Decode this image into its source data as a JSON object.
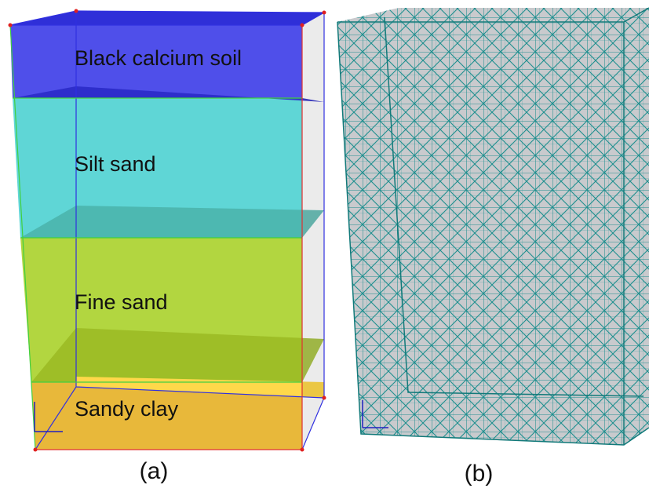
{
  "panels": [
    {
      "label": "(a)",
      "layers": [
        "Black calcium soil",
        "Silt sand",
        "Fine sand",
        "Sandy clay"
      ]
    },
    {
      "label": "(b)"
    }
  ]
}
